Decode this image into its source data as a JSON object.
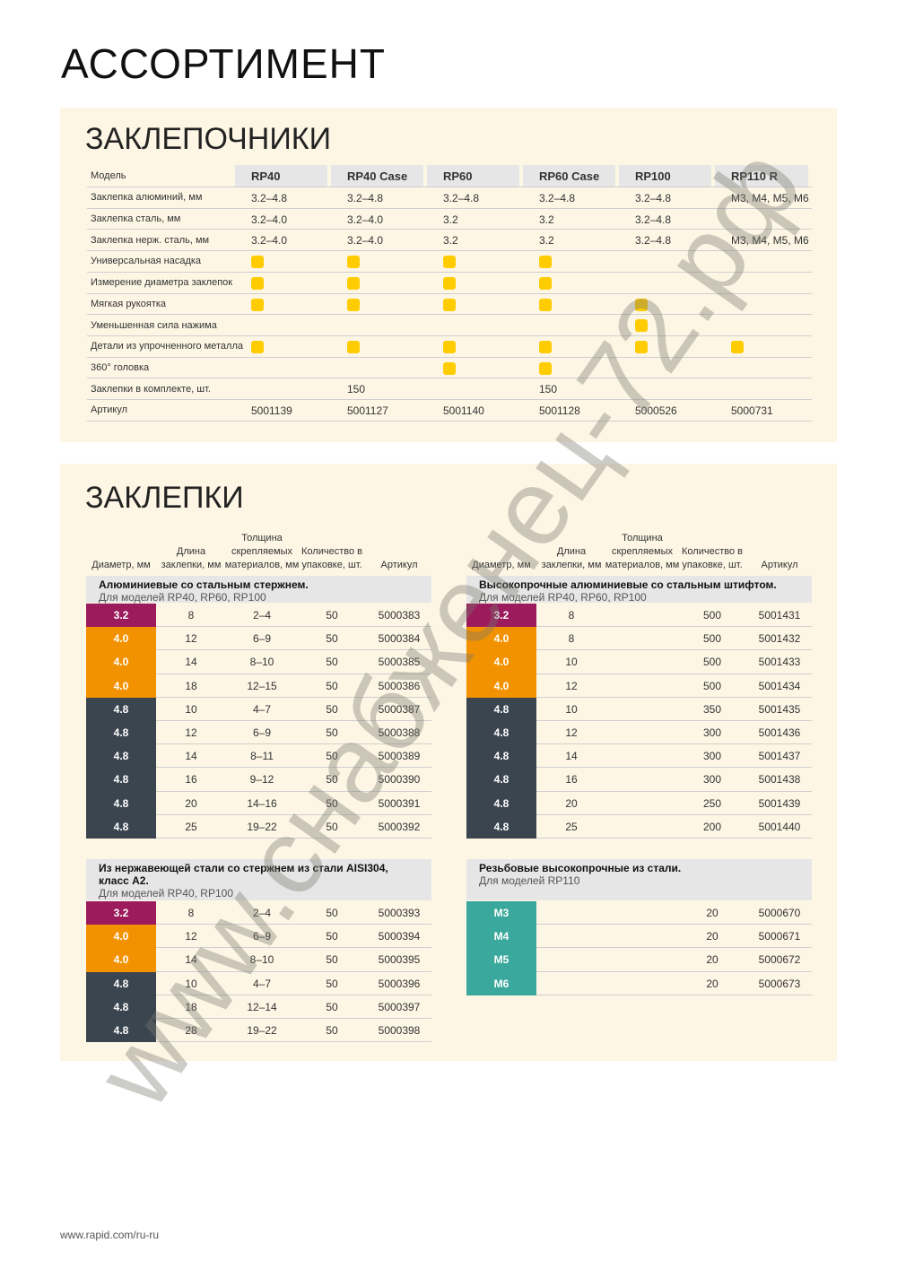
{
  "page_title": "АССОРТИМЕНТ",
  "tools": {
    "title": "ЗАКЛЕПОЧНИКИ",
    "header": [
      "Модель",
      "RP40",
      "RP40 Case",
      "RP60",
      "RP60 Case",
      "RP100",
      "RP110 R"
    ],
    "dot_color": "#ffcc00",
    "rows": [
      [
        "Заклепка алюминий, мм",
        "3.2–4.8",
        "3.2–4.8",
        "3.2–4.8",
        "3.2–4.8",
        "3.2–4.8",
        "M3, M4, M5, M6"
      ],
      [
        "Заклепка сталь, мм",
        "3.2–4.0",
        "3.2–4.0",
        "3.2",
        "3.2",
        "3.2–4.8",
        null
      ],
      [
        "Заклепка нерж. сталь, мм",
        "3.2–4.0",
        "3.2–4.0",
        "3.2",
        "3.2",
        "3.2–4.8",
        "M3, M4, M5, M6"
      ],
      [
        "Универсальная насадка",
        true,
        true,
        true,
        true,
        false,
        false
      ],
      [
        "Измерение диаметра заклепок",
        true,
        true,
        true,
        true,
        false,
        false
      ],
      [
        "Мягкая рукоятка",
        true,
        true,
        true,
        true,
        true,
        false
      ],
      [
        "Уменьшенная сила нажима",
        false,
        false,
        false,
        false,
        true,
        false
      ],
      [
        "Детали из упрочненного металла",
        true,
        true,
        true,
        true,
        true,
        true
      ],
      [
        "360° головка",
        false,
        false,
        true,
        true,
        false,
        false
      ],
      [
        "Заклепки в комплекте, шт.",
        null,
        "150",
        null,
        "150",
        null,
        null
      ],
      [
        "Артикул",
        "5001139",
        "5001127",
        "5001140",
        "5001128",
        "5000526",
        "5000731"
      ]
    ]
  },
  "rivets": {
    "title": "ЗАКЛЕПКИ",
    "columns": [
      "Диаметр, мм",
      "Длина заклепки, мм",
      "Толщина скрепляемых материалов, мм",
      "Количество в упаковке, шт.",
      "Артикул"
    ],
    "colors": {
      "3.2": "#9c1b5c",
      "4.0": "#f39200",
      "4.8": "#3b4550",
      "M3": "#3aa89c",
      "M4": "#3aa89c",
      "M5": "#3aa89c",
      "M6": "#3aa89c"
    },
    "groups": [
      {
        "title": "Алюминиевые со стальным стержнем.",
        "subtitle": "Для моделей RP40, RP60, RP100",
        "rows": [
          [
            "3.2",
            "8",
            "2–4",
            "50",
            "5000383"
          ],
          [
            "4.0",
            "12",
            "6–9",
            "50",
            "5000384"
          ],
          [
            "4.0",
            "14",
            "8–10",
            "50",
            "5000385"
          ],
          [
            "4.0",
            "18",
            "12–15",
            "50",
            "5000386"
          ],
          [
            "4.8",
            "10",
            "4–7",
            "50",
            "5000387"
          ],
          [
            "4.8",
            "12",
            "6–9",
            "50",
            "5000388"
          ],
          [
            "4.8",
            "14",
            "8–11",
            "50",
            "5000389"
          ],
          [
            "4.8",
            "16",
            "9–12",
            "50",
            "5000390"
          ],
          [
            "4.8",
            "20",
            "14–16",
            "50",
            "5000391"
          ],
          [
            "4.8",
            "25",
            "19–22",
            "50",
            "5000392"
          ]
        ]
      },
      {
        "title": "Высокопрочные алюминиевые со стальным штифтом.",
        "subtitle": "Для моделей RP40, RP60, RP100",
        "rows": [
          [
            "3.2",
            "8",
            null,
            "500",
            "5001431"
          ],
          [
            "4.0",
            "8",
            null,
            "500",
            "5001432"
          ],
          [
            "4.0",
            "10",
            null,
            "500",
            "5001433"
          ],
          [
            "4.0",
            "12",
            null,
            "500",
            "5001434"
          ],
          [
            "4.8",
            "10",
            null,
            "350",
            "5001435"
          ],
          [
            "4.8",
            "12",
            null,
            "300",
            "5001436"
          ],
          [
            "4.8",
            "14",
            null,
            "300",
            "5001437"
          ],
          [
            "4.8",
            "16",
            null,
            "300",
            "5001438"
          ],
          [
            "4.8",
            "20",
            null,
            "250",
            "5001439"
          ],
          [
            "4.8",
            "25",
            null,
            "200",
            "5001440"
          ]
        ]
      },
      {
        "title": "Из нержавеющей стали со стержнем из стали AISI304, класс A2.",
        "subtitle": "Для моделей RP40, RP100",
        "rows": [
          [
            "3.2",
            "8",
            "2–4",
            "50",
            "5000393"
          ],
          [
            "4.0",
            "12",
            "6–9",
            "50",
            "5000394"
          ],
          [
            "4.0",
            "14",
            "8–10",
            "50",
            "5000395"
          ],
          [
            "4.8",
            "10",
            "4–7",
            "50",
            "5000396"
          ],
          [
            "4.8",
            "18",
            "12–14",
            "50",
            "5000397"
          ],
          [
            "4.8",
            "28",
            "19–22",
            "50",
            "5000398"
          ]
        ]
      },
      {
        "title": "Резьбовые высокопрочные из стали.",
        "subtitle": "Для моделей RP110",
        "rows": [
          [
            "M3",
            null,
            null,
            "20",
            "5000670"
          ],
          [
            "M4",
            null,
            null,
            "20",
            "5000671"
          ],
          [
            "M5",
            null,
            null,
            "20",
            "5000672"
          ],
          [
            "M6",
            null,
            null,
            "20",
            "5000673"
          ]
        ]
      }
    ]
  },
  "footer": "www.rapid.com/ru-ru",
  "watermark": "www.снабженец-72.рф"
}
